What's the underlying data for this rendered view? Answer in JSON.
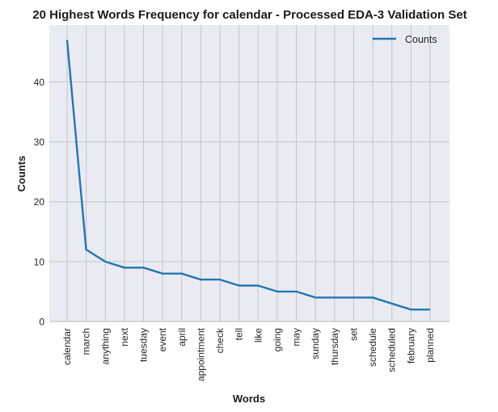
{
  "chart_data": {
    "type": "line",
    "title": "20 Highest Words Frequency for calendar - Processed EDA-3 Validation Set",
    "xlabel": "Words",
    "ylabel": "Counts",
    "categories": [
      "calendar",
      "march",
      "anything",
      "next",
      "tuesday",
      "event",
      "april",
      "appointment",
      "check",
      "tell",
      "like",
      "going",
      "may",
      "sunday",
      "thursday",
      "set",
      "schedule",
      "scheduled",
      "february",
      "planned"
    ],
    "series": [
      {
        "name": "Counts",
        "values": [
          47,
          12,
          10,
          9,
          9,
          8,
          8,
          7,
          7,
          6,
          6,
          5,
          5,
          4,
          4,
          4,
          4,
          3,
          2,
          2
        ]
      }
    ],
    "ylim": [
      0,
      49.5
    ],
    "yticks": [
      0,
      10,
      20,
      30,
      40
    ],
    "grid": true,
    "legend": "top-right",
    "colors": {
      "line": "#1f77b4",
      "plot_bg": "#eaeaf2",
      "grid": "#c4c4c8"
    }
  }
}
